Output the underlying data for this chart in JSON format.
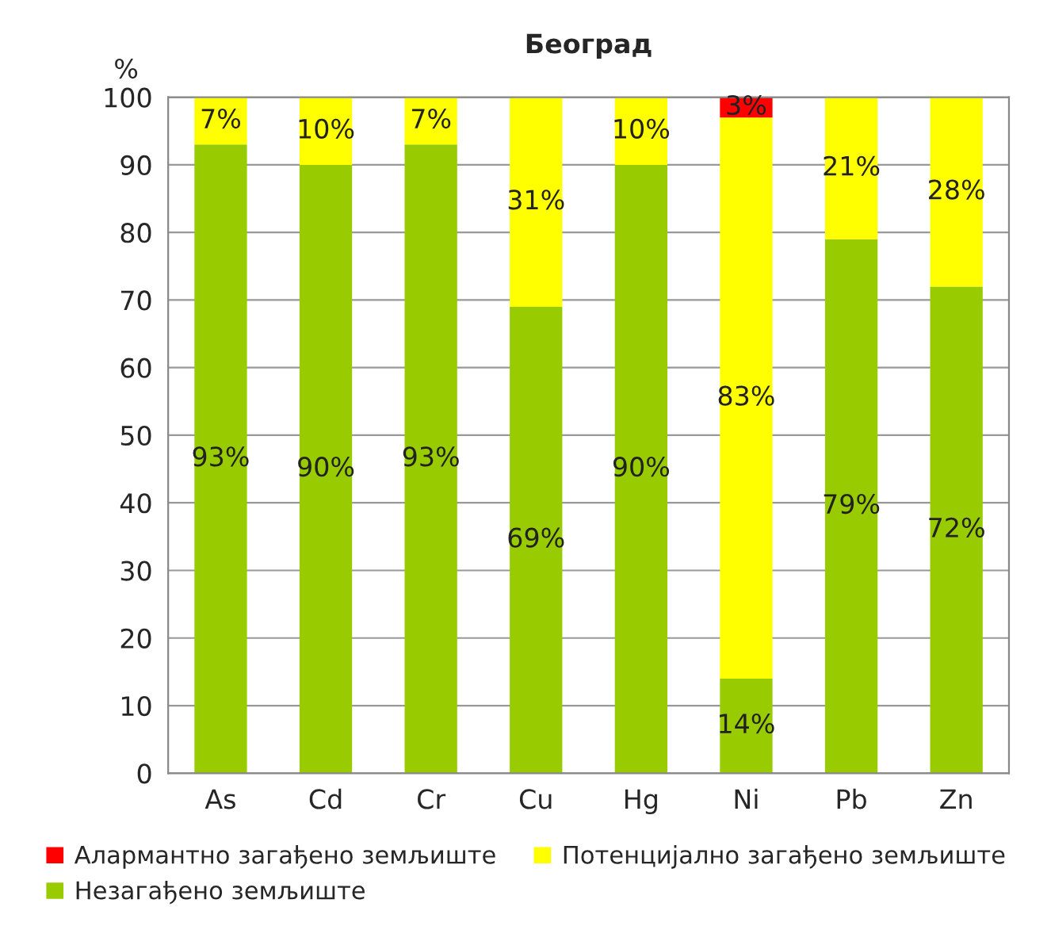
{
  "chart_data": {
    "type": "bar",
    "title": "Београд",
    "ylabel": "%",
    "stacked": true,
    "categories": [
      "As",
      "Cd",
      "Cr",
      "Cu",
      "Hg",
      "Ni",
      "Pb",
      "Zn"
    ],
    "series": [
      {
        "name": "Незагађено земљиште",
        "color": "#99cc00",
        "values": [
          93,
          90,
          93,
          69,
          90,
          14,
          79,
          72
        ],
        "value_labels": [
          "93%",
          "90%",
          "93%",
          "69%",
          "90%",
          "14%",
          "79%",
          "72%"
        ]
      },
      {
        "name": "Потенцијално загађено земљиште",
        "color": "#ffff00",
        "values": [
          7,
          10,
          7,
          31,
          10,
          83,
          21,
          28
        ],
        "value_labels": [
          "7%",
          "10%",
          "7%",
          "31%",
          "10%",
          "83%",
          "21%",
          "28%"
        ]
      },
      {
        "name": "Алармантно загађено земљиште",
        "color": "#ff0000",
        "values": [
          null,
          null,
          null,
          null,
          null,
          3,
          null,
          null
        ],
        "value_labels": [
          null,
          null,
          null,
          null,
          null,
          "3%",
          null,
          null
        ]
      }
    ],
    "ylim": [
      0,
      100
    ],
    "yticks": [
      0,
      10,
      20,
      30,
      40,
      50,
      60,
      70,
      80,
      90,
      100
    ],
    "grid": "y",
    "legend": "bottom"
  }
}
